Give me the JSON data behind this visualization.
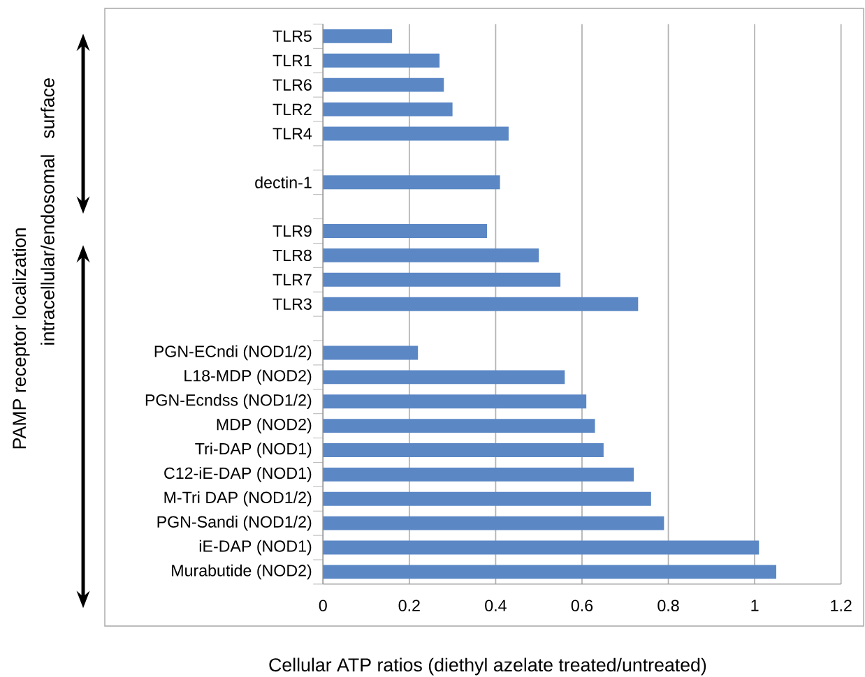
{
  "chart_data": {
    "type": "bar",
    "orientation": "horizontal",
    "xlabel": "Cellular  ATP ratios (diethyl azelate treated/untreated)",
    "categories": [
      "TLR5",
      "TLR1",
      "TLR6",
      "TLR2",
      "TLR4",
      null,
      "dectin-1",
      null,
      "TLR9",
      "TLR8",
      "TLR7",
      "TLR3",
      null,
      "PGN-ECndi (NOD1/2)",
      "L18-MDP (NOD2)",
      "PGN-Ecndss (NOD1/2)",
      "MDP (NOD2)",
      "Tri-DAP (NOD1)",
      "C12-iE-DAP (NOD1)",
      "M-Tri DAP (NOD1/2)",
      "PGN-Sandi (NOD1/2)",
      "iE-DAP (NOD1)",
      "Murabutide (NOD2)"
    ],
    "values": [
      0.16,
      0.27,
      0.28,
      0.3,
      0.43,
      null,
      0.41,
      null,
      0.38,
      0.5,
      0.55,
      0.73,
      null,
      0.22,
      0.56,
      0.61,
      0.63,
      0.65,
      0.72,
      0.76,
      0.79,
      1.01,
      1.05
    ],
    "color": "#5b87c5",
    "xlim": [
      0,
      1.2
    ],
    "xticks": [
      0,
      0.2,
      0.4,
      0.6,
      0.8,
      1,
      1.2
    ],
    "grid": "x",
    "annotations": [
      "PAMP receptor localization",
      "surface",
      "intracellular/endosomal"
    ]
  }
}
